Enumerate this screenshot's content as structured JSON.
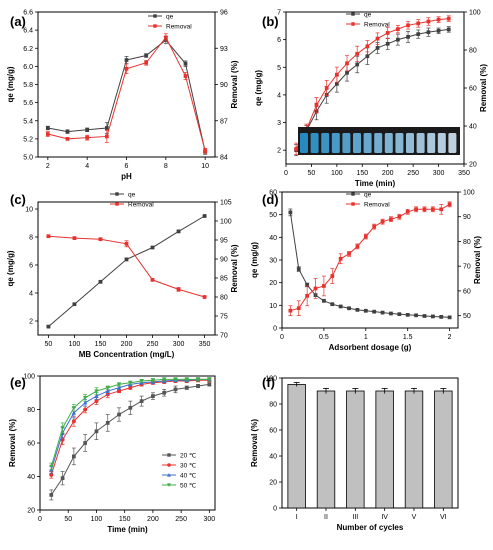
{
  "chart_data": [
    {
      "panel": "(a)",
      "type": "line",
      "xlabel": "pH",
      "ylabel": "qe (mg/g)",
      "ylabel2": "Removal (%)",
      "x": [
        2,
        3,
        4,
        5,
        6,
        7,
        8,
        9,
        10
      ],
      "xlim": [
        1.5,
        10.5
      ],
      "xticks": [
        2,
        4,
        6,
        8,
        10
      ],
      "ylim": [
        5.0,
        6.6
      ],
      "yticks": [
        5.0,
        5.2,
        5.4,
        5.6,
        5.8,
        6.0,
        6.2,
        6.4,
        6.6
      ],
      "ylim2": [
        84,
        96
      ],
      "yticks2": [
        84,
        87,
        90,
        93,
        96
      ],
      "series": [
        {
          "name": "qe",
          "axis": "left",
          "color": "#404040",
          "marker": "square",
          "values": [
            5.32,
            5.28,
            5.3,
            5.32,
            6.07,
            6.12,
            6.29,
            6.03,
            5.06
          ],
          "errors": [
            0.02,
            0.02,
            0.02,
            0.06,
            0.04,
            0.02,
            0.04,
            0.03,
            0.03
          ]
        },
        {
          "name": "Removal",
          "axis": "right",
          "color": "#e8322e",
          "marker": "square",
          "values": [
            85.9,
            85.5,
            85.6,
            85.7,
            91.3,
            91.8,
            93.9,
            90.7,
            84.5
          ],
          "errors": [
            0.2,
            0.1,
            0.2,
            0.5,
            0.4,
            0.2,
            0.3,
            0.3,
            0.2
          ]
        }
      ]
    },
    {
      "panel": "(b)",
      "type": "line",
      "xlabel": "Time (min)",
      "ylabel": "qe (mg/g)",
      "ylabel2": "Removal (%)",
      "x": [
        20,
        40,
        60,
        80,
        100,
        120,
        140,
        160,
        180,
        200,
        220,
        240,
        260,
        280,
        300,
        320
      ],
      "xlim": [
        0,
        350
      ],
      "xticks": [
        0,
        50,
        100,
        150,
        200,
        250,
        300,
        350
      ],
      "ylim": [
        1.5,
        7
      ],
      "yticks": [
        2,
        3,
        4,
        5,
        6,
        7
      ],
      "ylim2": [
        20,
        100
      ],
      "yticks2": [
        20,
        40,
        60,
        80,
        100
      ],
      "series": [
        {
          "name": "qe",
          "axis": "left",
          "color": "#404040",
          "marker": "square",
          "values": [
            2.0,
            2.7,
            3.4,
            4.0,
            4.4,
            4.8,
            5.1,
            5.4,
            5.7,
            5.85,
            6.0,
            6.1,
            6.2,
            6.27,
            6.32,
            6.37
          ],
          "errors": [
            0.2,
            0.2,
            0.3,
            0.3,
            0.3,
            0.3,
            0.3,
            0.3,
            0.2,
            0.2,
            0.2,
            0.2,
            0.15,
            0.15,
            0.1,
            0.1
          ]
        },
        {
          "name": "Removal",
          "axis": "right",
          "color": "#e8322e",
          "marker": "square",
          "values": [
            28,
            38,
            51,
            60,
            67,
            73,
            78,
            82,
            86,
            89,
            91,
            93,
            94,
            95,
            96,
            96.5
          ],
          "errors": [
            3,
            3,
            4,
            4,
            4,
            4,
            4,
            3,
            3,
            3,
            2,
            2,
            2,
            2,
            1.5,
            1.5
          ]
        }
      ]
    },
    {
      "panel": "(c)",
      "type": "line",
      "xlabel": "MB Concentration (mg/L)",
      "ylabel": "qe (mg/g)",
      "ylabel2": "Removal (%)",
      "x": [
        50,
        100,
        150,
        200,
        250,
        300,
        350
      ],
      "xlim": [
        30,
        370
      ],
      "xticks": [
        50,
        100,
        150,
        200,
        250,
        300,
        350
      ],
      "xticklabels": [
        "50",
        "100",
        "150",
        "200",
        "250",
        "300",
        "350"
      ],
      "ylim": [
        1,
        10.5
      ],
      "yticks": [
        2,
        4,
        6,
        8,
        10
      ],
      "ylim2": [
        70,
        105
      ],
      "yticks2": [
        70,
        75,
        80,
        85,
        90,
        95,
        100,
        105
      ],
      "series": [
        {
          "name": "qe",
          "axis": "left",
          "color": "#404040",
          "marker": "square",
          "values": [
            1.6,
            3.2,
            4.8,
            6.4,
            7.25,
            8.4,
            9.5
          ],
          "errors": [
            0.05,
            0.05,
            0.05,
            0.1,
            0.05,
            0.05,
            0.05
          ]
        },
        {
          "name": "Removal",
          "axis": "right",
          "color": "#e8322e",
          "marker": "square",
          "values": [
            96.0,
            95.5,
            95.2,
            94.0,
            84.5,
            82.0,
            80.0
          ],
          "errors": [
            0.2,
            0.2,
            0.2,
            0.8,
            0.2,
            0.5,
            0.2
          ]
        }
      ]
    },
    {
      "panel": "(d)",
      "type": "line",
      "xlabel": "Adsorbent dosage (g)",
      "ylabel": "qe (mg/g)",
      "ylabel2": "Removal (%)",
      "x": [
        0.1,
        0.2,
        0.3,
        0.4,
        0.5,
        0.6,
        0.7,
        0.8,
        0.9,
        1.0,
        1.1,
        1.2,
        1.3,
        1.4,
        1.5,
        1.6,
        1.7,
        1.8,
        1.9,
        2.0
      ],
      "xlim": [
        0,
        2.1
      ],
      "xticks": [
        0.0,
        0.5,
        1.0,
        1.5,
        2.0
      ],
      "ylim": [
        0,
        60
      ],
      "yticks": [
        0,
        10,
        20,
        30,
        40,
        50,
        60
      ],
      "ylim2": [
        45,
        100
      ],
      "yticks2": [
        50,
        60,
        70,
        80,
        90,
        100
      ],
      "series": [
        {
          "name": "qe",
          "axis": "left",
          "color": "#404040",
          "marker": "square",
          "values": [
            51,
            26,
            19,
            14.5,
            12,
            10.5,
            9.5,
            8.7,
            8.0,
            7.6,
            7.2,
            6.8,
            6.4,
            6.1,
            5.8,
            5.6,
            5.3,
            5.1,
            4.9,
            4.7
          ],
          "errors": [
            1.5,
            1.0,
            0.8,
            0.6,
            0.4,
            0.3,
            0.3,
            0.3,
            0.2,
            0.2,
            0.2,
            0.2,
            0.2,
            0.2,
            0.2,
            0.2,
            0.2,
            0.2,
            0.2,
            0.2
          ]
        },
        {
          "name": "Removal",
          "axis": "right",
          "color": "#e8322e",
          "marker": "square",
          "values": [
            52,
            53,
            58,
            61,
            62,
            66,
            73,
            75,
            78,
            82,
            86,
            88,
            89,
            90,
            92,
            93,
            93,
            93,
            93,
            95
          ],
          "errors": [
            2,
            3,
            4,
            4,
            4,
            3,
            2,
            1,
            1,
            1,
            1,
            1,
            1,
            1,
            1,
            1,
            1,
            1,
            2,
            1
          ]
        }
      ]
    },
    {
      "panel": "(e)",
      "type": "line",
      "xlabel": "Time (min)",
      "ylabel": "Removal (%)",
      "x": [
        20,
        40,
        60,
        80,
        100,
        120,
        140,
        160,
        180,
        200,
        220,
        240,
        260,
        280,
        300
      ],
      "xlim": [
        0,
        310
      ],
      "xticks": [
        0,
        50,
        100,
        150,
        200,
        250,
        300
      ],
      "ylim": [
        20,
        100
      ],
      "yticks": [
        20,
        40,
        60,
        80,
        100
      ],
      "series": [
        {
          "name": "20 ℃",
          "color": "#555555",
          "marker": "square",
          "values": [
            29,
            39,
            52,
            60,
            67,
            72,
            77,
            81,
            85,
            88,
            90,
            92,
            93,
            94,
            95
          ],
          "errors": [
            3,
            4,
            5,
            5,
            5,
            5,
            4,
            4,
            3,
            2,
            2,
            2,
            1,
            1,
            1
          ]
        },
        {
          "name": "30 ℃",
          "color": "#e8322e",
          "marker": "circle",
          "values": [
            41,
            62,
            73,
            80,
            85,
            89,
            91,
            93,
            95,
            96,
            96.5,
            97,
            97,
            97.5,
            97.5
          ],
          "errors": [
            2,
            3,
            3,
            2,
            2,
            2,
            1,
            1,
            1,
            1,
            1,
            1,
            1,
            1,
            1
          ]
        },
        {
          "name": "40 ℃",
          "color": "#3c6fd1",
          "marker": "triangle",
          "values": [
            44,
            66,
            78,
            84,
            88,
            91,
            93,
            95,
            96,
            96.5,
            97,
            97.5,
            97.5,
            98,
            98
          ],
          "errors": [
            2,
            3,
            3,
            2,
            2,
            2,
            1,
            1,
            1,
            1,
            1,
            1,
            1,
            1,
            1
          ]
        },
        {
          "name": "50 ℃",
          "color": "#3fae49",
          "marker": "triangle-down",
          "values": [
            46,
            69,
            81,
            87,
            91,
            93,
            95,
            96,
            97,
            97.5,
            98,
            98,
            98,
            98,
            98
          ],
          "errors": [
            2,
            3,
            2,
            2,
            2,
            1,
            1,
            1,
            1,
            1,
            1,
            1,
            1,
            1,
            1
          ]
        }
      ]
    },
    {
      "panel": "(f)",
      "type": "bar",
      "xlabel": "Number of cycles",
      "ylabel": "Removal (%)",
      "categories": [
        "I",
        "II",
        "III",
        "IV",
        "V",
        "VI"
      ],
      "values": [
        95,
        90,
        90,
        90,
        90,
        90
      ],
      "errors": [
        1.5,
        2,
        2,
        2,
        2,
        2
      ],
      "ylim": [
        0,
        100
      ],
      "yticks": [
        0,
        20,
        40,
        60,
        80,
        100
      ],
      "bar_color": "#c0c0c0"
    }
  ]
}
